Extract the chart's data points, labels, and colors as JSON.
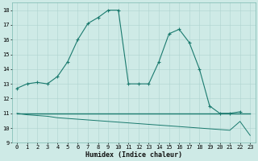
{
  "xlabel": "Humidex (Indice chaleur)",
  "xlim": [
    -0.5,
    23.5
  ],
  "ylim": [
    9,
    18.5
  ],
  "yticks": [
    9,
    10,
    11,
    12,
    13,
    14,
    15,
    16,
    17,
    18
  ],
  "xticks": [
    0,
    1,
    2,
    3,
    4,
    5,
    6,
    7,
    8,
    9,
    10,
    11,
    12,
    13,
    14,
    15,
    16,
    17,
    18,
    19,
    20,
    21,
    22,
    23
  ],
  "bg_color": "#ceeae6",
  "line_color": "#1a7a6e",
  "line1_x": [
    0,
    1,
    2,
    3,
    4,
    5,
    6,
    7,
    8,
    9,
    10,
    11,
    12,
    13,
    14,
    15,
    16,
    17,
    18,
    19,
    20,
    21,
    22
  ],
  "line1_y": [
    12.7,
    13.0,
    13.1,
    13.0,
    13.5,
    14.5,
    16.0,
    17.1,
    17.5,
    18.0,
    18.0,
    13.0,
    13.0,
    13.0,
    14.5,
    16.4,
    16.7,
    15.8,
    14.0,
    11.5,
    11.0,
    11.0,
    11.1
  ],
  "line2_x": [
    0,
    1,
    2,
    3,
    4,
    5,
    6,
    7,
    8,
    9,
    10,
    11,
    12,
    13,
    14,
    15,
    16,
    17,
    18,
    19,
    20,
    21,
    22,
    23
  ],
  "line2_y": [
    11.0,
    11.0,
    11.0,
    11.0,
    11.0,
    11.0,
    11.0,
    11.0,
    11.0,
    11.0,
    11.0,
    11.0,
    11.0,
    11.0,
    11.0,
    11.0,
    11.0,
    11.0,
    11.0,
    11.0,
    11.0,
    11.0,
    11.0,
    11.0
  ],
  "line3_x": [
    0,
    1,
    2,
    3,
    4,
    5,
    6,
    7,
    8,
    9,
    10,
    11,
    12,
    13,
    14,
    15,
    16,
    17,
    18,
    19,
    20,
    21,
    22,
    23
  ],
  "line3_y": [
    11.0,
    10.9,
    10.85,
    10.8,
    10.7,
    10.65,
    10.6,
    10.55,
    10.5,
    10.45,
    10.4,
    10.35,
    10.3,
    10.25,
    10.2,
    10.15,
    10.1,
    10.05,
    10.0,
    9.95,
    9.9,
    9.85,
    10.45,
    9.5
  ],
  "xlabel_fontsize": 6.0,
  "tick_fontsize": 5.0,
  "grid_color": "#aed4cf",
  "spine_color": "#7ab8b0"
}
